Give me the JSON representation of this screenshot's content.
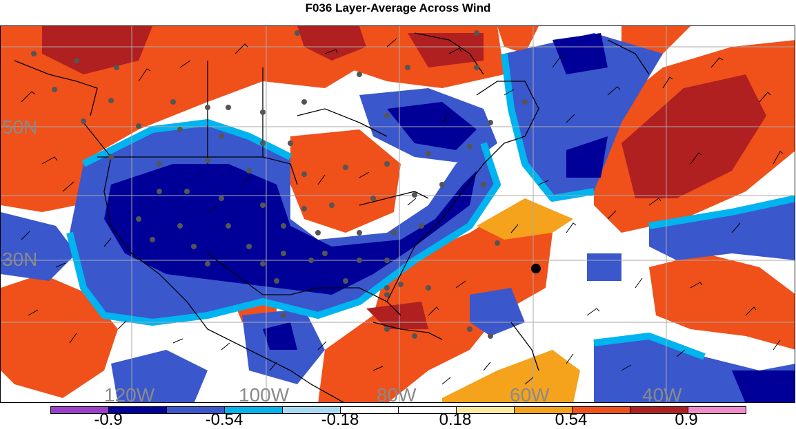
{
  "title": "F036 Layer-Average Across Wind",
  "map": {
    "lat_labels": [
      "50N",
      "30N"
    ],
    "lon_labels": [
      "120W",
      "100W",
      "80W",
      "60W",
      "40W"
    ],
    "grid_color": "#aaaaaa",
    "label_color": "#8a8a8a"
  },
  "colorbar": {
    "colors": [
      "#9a40c8",
      "#000099",
      "#3a57cc",
      "#00b4f0",
      "#a9daf5",
      "#ffffff",
      "#ffffff",
      "#fbeaa0",
      "#f5a21d",
      "#f0501a",
      "#b02020",
      "#f08cc8"
    ],
    "labels": [
      "-0.9",
      "-0.54",
      "-0.18",
      "0.18",
      "0.54",
      "0.9"
    ]
  }
}
